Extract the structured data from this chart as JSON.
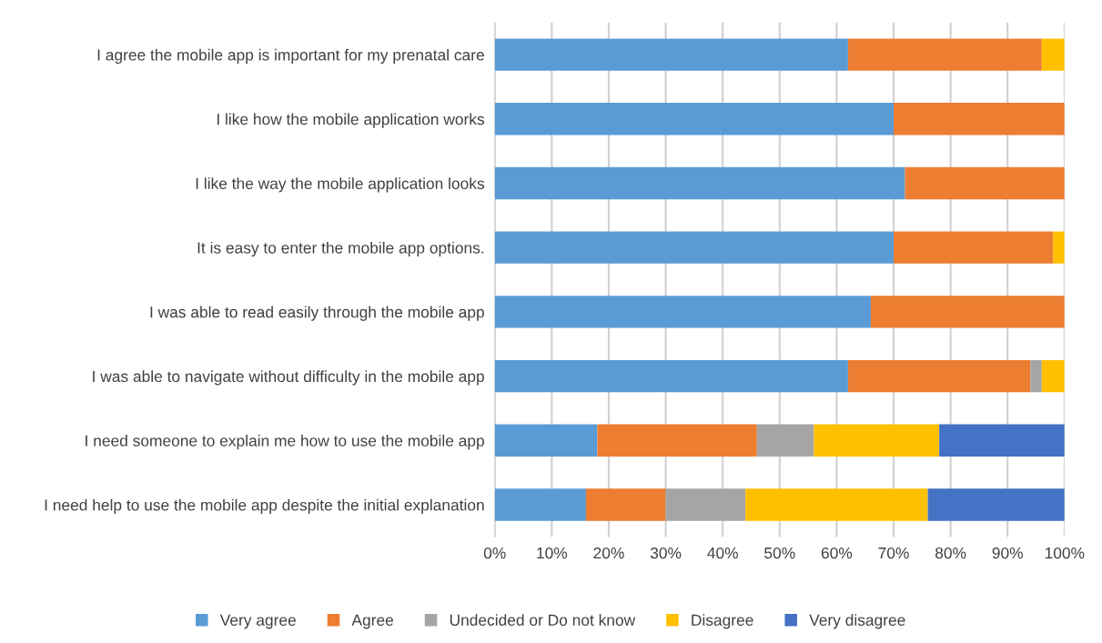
{
  "chart_data": {
    "type": "bar",
    "orientation": "horizontal",
    "stacked": true,
    "categories": [
      "I agree the mobile app is important for my prenatal care",
      "I like how the mobile application works",
      "I like the way the mobile application looks",
      "It is easy to enter the mobile app options.",
      "I was able to read easily through the mobile app",
      "I was able to navigate without difficulty in the mobile app",
      "I need someone to explain me how to use the mobile app",
      "I need help to use the mobile app despite the initial explanation"
    ],
    "series": [
      {
        "name": "Very agree",
        "color": "#5b9bd5",
        "values": [
          62,
          70,
          72,
          70,
          66,
          62,
          18,
          16
        ]
      },
      {
        "name": "Agree",
        "color": "#ed7d31",
        "values": [
          34,
          30,
          28,
          28,
          34,
          32,
          28,
          14
        ]
      },
      {
        "name": "Undecided or Do not know",
        "color": "#a5a5a5",
        "values": [
          0,
          0,
          0,
          0,
          0,
          2,
          10,
          14
        ]
      },
      {
        "name": "Disagree",
        "color": "#ffc000",
        "values": [
          4,
          0,
          0,
          2,
          0,
          4,
          22,
          32
        ]
      },
      {
        "name": "Very disagree",
        "color": "#4472c4",
        "values": [
          0,
          0,
          0,
          0,
          0,
          0,
          22,
          24
        ]
      }
    ],
    "xlim": [
      0,
      100
    ],
    "xticks": [
      {
        "value": 0,
        "label": "0%"
      },
      {
        "value": 10,
        "label": "10%"
      },
      {
        "value": 20,
        "label": "20%"
      },
      {
        "value": 30,
        "label": "30%"
      },
      {
        "value": 40,
        "label": "40%"
      },
      {
        "value": 50,
        "label": "50%"
      },
      {
        "value": 60,
        "label": "60%"
      },
      {
        "value": 70,
        "label": "70%"
      },
      {
        "value": 80,
        "label": "80%"
      },
      {
        "value": 90,
        "label": "90%"
      },
      {
        "value": 100,
        "label": "100%"
      }
    ],
    "grid": "x",
    "legend": "bottom"
  }
}
